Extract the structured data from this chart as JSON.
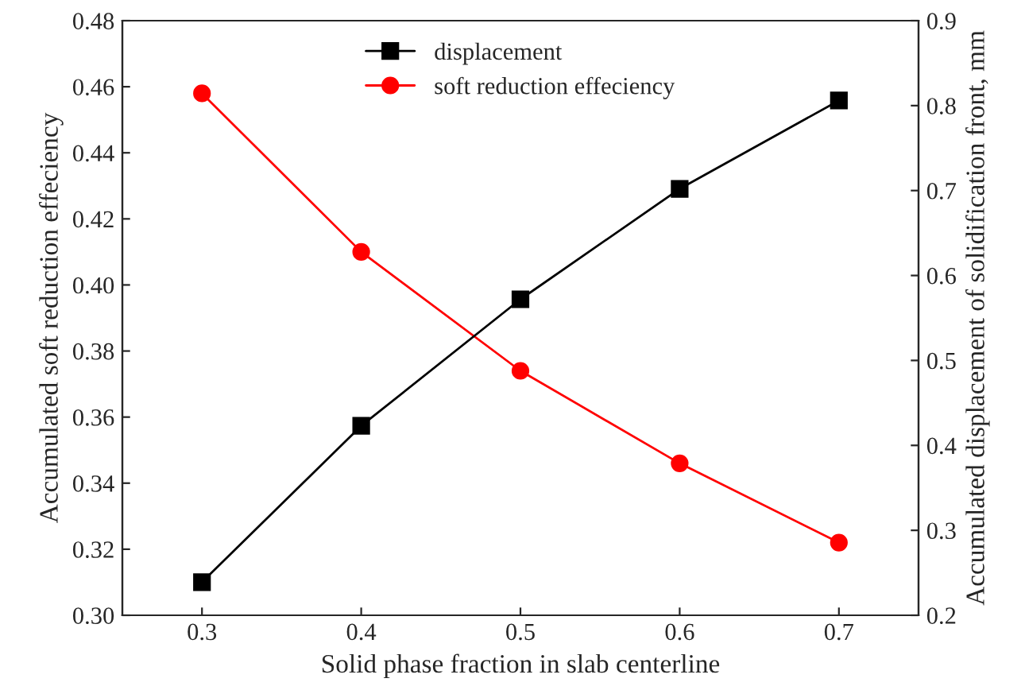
{
  "chart_data": {
    "type": "line",
    "xlabel": "Solid phase fraction in slab centerline",
    "ylabel": "Accumulated soft reduction effeciency",
    "y2label": "Accumulated displacement of solidification front, mm",
    "x": [
      0.3,
      0.4,
      0.5,
      0.6,
      0.7
    ],
    "xlim": [
      0.25,
      0.75
    ],
    "xticks": [
      0.3,
      0.4,
      0.5,
      0.6,
      0.7
    ],
    "ylim": [
      0.3,
      0.48
    ],
    "yticks": [
      {
        "value": 0.3,
        "label": "0.30"
      },
      0.32,
      0.34,
      0.36,
      0.38,
      {
        "value": 0.4,
        "label": "0.40"
      },
      0.42,
      0.44,
      0.46,
      0.48
    ],
    "y2lim": [
      0.2,
      0.9
    ],
    "y2ticks": [
      0.2,
      0.3,
      0.4,
      0.5,
      0.6,
      0.7,
      0.8,
      0.9
    ],
    "series": [
      {
        "name": "displacement",
        "color": "#000000",
        "marker": "square",
        "axis": "y2",
        "values": [
          0.239,
          0.423,
          0.572,
          0.702,
          0.806
        ]
      },
      {
        "name": "soft reduction effeciency",
        "color": "#ff0000",
        "marker": "circle",
        "values": [
          0.458,
          0.41,
          0.374,
          0.346,
          0.322
        ]
      }
    ],
    "legend": "top",
    "grid": false
  }
}
